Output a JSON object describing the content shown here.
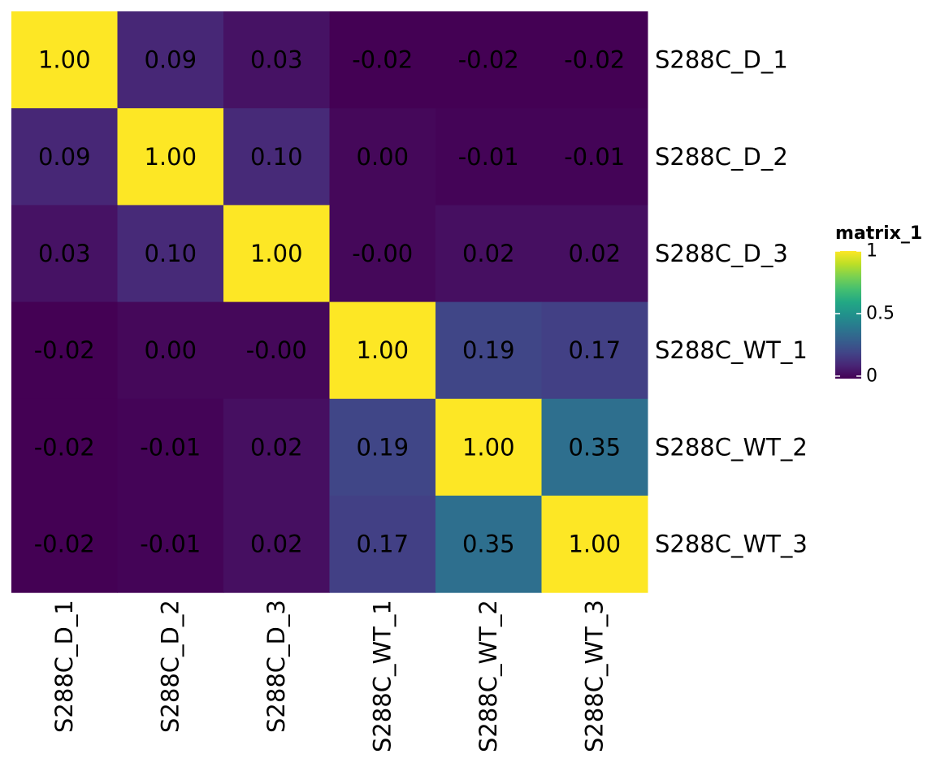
{
  "chart_data": {
    "type": "heatmap",
    "rows": [
      "S288C_D_1",
      "S288C_D_2",
      "S288C_D_3",
      "S288C_WT_1",
      "S288C_WT_2",
      "S288C_WT_3"
    ],
    "columns": [
      "S288C_D_1",
      "S288C_D_2",
      "S288C_D_3",
      "S288C_WT_1",
      "S288C_WT_2",
      "S288C_WT_3"
    ],
    "values": [
      [
        1.0,
        0.09,
        0.03,
        -0.02,
        -0.02,
        -0.02
      ],
      [
        0.09,
        1.0,
        0.1,
        0.0,
        -0.01,
        -0.01
      ],
      [
        0.03,
        0.1,
        1.0,
        -0.0,
        0.02,
        0.02
      ],
      [
        -0.02,
        0.0,
        -0.0,
        1.0,
        0.19,
        0.17
      ],
      [
        -0.02,
        -0.01,
        0.02,
        0.19,
        1.0,
        0.35
      ],
      [
        -0.02,
        -0.01,
        0.02,
        0.17,
        0.35,
        1.0
      ]
    ],
    "cell_labels": [
      [
        "1.00",
        "0.09",
        "0.03",
        "-0.02",
        "-0.02",
        "-0.02"
      ],
      [
        "0.09",
        "1.00",
        "0.10",
        "0.00",
        "-0.01",
        "-0.01"
      ],
      [
        "0.03",
        "0.10",
        "1.00",
        "-0.00",
        "0.02",
        "0.02"
      ],
      [
        "-0.02",
        "0.00",
        "-0.00",
        "1.00",
        "0.19",
        "0.17"
      ],
      [
        "-0.02",
        "-0.01",
        "0.02",
        "0.19",
        "1.00",
        "0.35"
      ],
      [
        "-0.02",
        "-0.01",
        "0.02",
        "0.17",
        "0.35",
        "1.00"
      ]
    ],
    "color_scale": "viridis",
    "color_range": [
      -0.02,
      1.0
    ],
    "legend": {
      "title": "matrix_1",
      "ticks": [
        {
          "value": 1,
          "label": "1"
        },
        {
          "value": 0.5,
          "label": "0.5"
        },
        {
          "value": 0,
          "label": "0"
        }
      ],
      "placement": "right"
    },
    "row_labels_position": "right",
    "column_labels_position": "bottom",
    "column_labels_rotation": "vertical"
  }
}
